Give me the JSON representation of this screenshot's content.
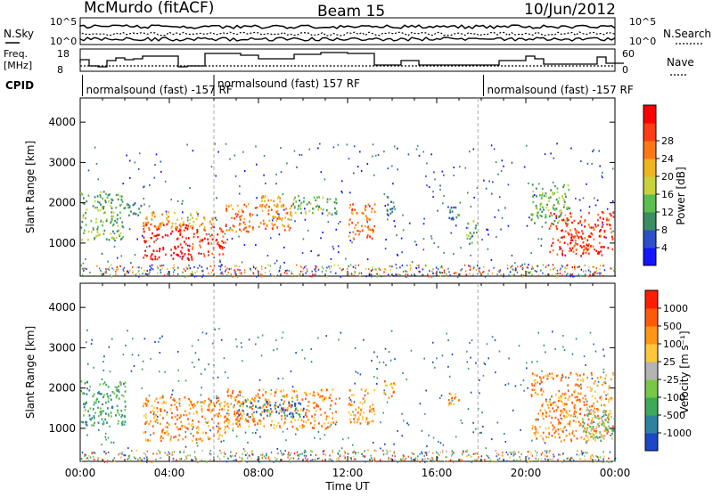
{
  "header": {
    "station": "McMurdo (fitACF)",
    "beam": "Beam 15",
    "date": "10/Jun/2012"
  },
  "top_panels": {
    "nsky_label": "N.Sky",
    "nsearch_label": "N.Search",
    "noise_ticks_left": [
      "10^5",
      "10^0"
    ],
    "noise_ticks_right": [
      "10^5",
      "10^0"
    ],
    "freq_label_1": "Freq.",
    "freq_label_2": "[MHz]",
    "freq_ticks": [
      "18",
      "8"
    ],
    "nave_label": "Nave",
    "nave_ticks": [
      "60",
      "0"
    ],
    "cpid_label": "CPID",
    "cpid_modes": [
      {
        "text": "normalsound (fast) -157 RF",
        "start_hour": 0.1
      },
      {
        "text": "normalsound (fast) 157 RF",
        "start_hour": 6.0
      },
      {
        "text": "normalsound (fast) -157 RF",
        "start_hour": 18.1
      }
    ]
  },
  "chart_data": [
    {
      "type": "heatmap",
      "name": "power",
      "ylabel": "Slant Range [km]",
      "xlabel": "",
      "ylim": [
        180,
        4600
      ],
      "yticks": [
        1000,
        2000,
        3000,
        4000
      ],
      "xlim": [
        0,
        24
      ],
      "colorbar": {
        "label": "Power [dB]",
        "ticks": [
          "4",
          "8",
          "12",
          "16",
          "20",
          "24",
          "28"
        ],
        "colors": [
          "#1414ff",
          "#2d50c8",
          "#3c8c64",
          "#5abe50",
          "#c8d23c",
          "#f0b41e",
          "#ff7814",
          "#ff3c14",
          "#ff0000"
        ]
      },
      "echo_regions": [
        {
          "t0": 0.0,
          "t1": 1.9,
          "r0": 1100,
          "r1": 2300,
          "level": 3
        },
        {
          "t0": 1.9,
          "t1": 2.7,
          "r0": 1700,
          "r1": 2100,
          "level": 2
        },
        {
          "t0": 2.8,
          "t1": 5.0,
          "r0": 600,
          "r1": 1500,
          "level": 8
        },
        {
          "t0": 2.8,
          "t1": 6.0,
          "r0": 1400,
          "r1": 1800,
          "level": 5
        },
        {
          "t0": 5.0,
          "t1": 6.5,
          "r0": 700,
          "r1": 1400,
          "level": 7
        },
        {
          "t0": 6.5,
          "t1": 9.5,
          "r0": 1300,
          "r1": 2000,
          "level": 6
        },
        {
          "t0": 8.0,
          "t1": 9.0,
          "r0": 1800,
          "r1": 2200,
          "level": 5
        },
        {
          "t0": 9.5,
          "t1": 11.5,
          "r0": 1700,
          "r1": 2200,
          "level": 3
        },
        {
          "t0": 12.0,
          "t1": 13.2,
          "r0": 1100,
          "r1": 2000,
          "level": 6
        },
        {
          "t0": 13.6,
          "t1": 14.1,
          "r0": 1700,
          "r1": 2200,
          "level": 2
        },
        {
          "t0": 16.5,
          "t1": 17.0,
          "r0": 1600,
          "r1": 2100,
          "level": 2
        },
        {
          "t0": 17.3,
          "t1": 17.8,
          "r0": 1000,
          "r1": 1600,
          "level": 3
        },
        {
          "t0": 20.2,
          "t1": 22.0,
          "r0": 1500,
          "r1": 2500,
          "level": 3
        },
        {
          "t0": 21.0,
          "t1": 23.9,
          "r0": 700,
          "r1": 1800,
          "level": 7
        }
      ]
    },
    {
      "type": "heatmap",
      "name": "velocity",
      "ylabel": "Slant Range [km]",
      "xlabel": "Time UT",
      "ylim": [
        180,
        4600
      ],
      "yticks": [
        1000,
        2000,
        3000,
        4000
      ],
      "xlim": [
        0,
        24
      ],
      "xticks": [
        "00:00",
        "04:00",
        "08:00",
        "12:00",
        "16:00",
        "20:00",
        "00:00"
      ],
      "colorbar": {
        "label": "Velocity [m s⁻¹]",
        "ticks": [
          "1000",
          "500",
          "100",
          "25",
          "-25",
          "-100",
          "-500",
          "-1000"
        ],
        "colors": [
          "#1e46c8",
          "#2d82a0",
          "#3caa5a",
          "#78c846",
          "#b4b4b4",
          "#ffc83c",
          "#ff9614",
          "#ff5a0a",
          "#ff1e00"
        ]
      },
      "echo_regions": [
        {
          "t0": 0.0,
          "t1": 2.0,
          "r0": 1100,
          "r1": 2200,
          "level": 2
        },
        {
          "t0": 2.8,
          "t1": 6.5,
          "r0": 700,
          "r1": 1800,
          "level": 6
        },
        {
          "t0": 6.5,
          "t1": 11.5,
          "r0": 1000,
          "r1": 2000,
          "level": 6
        },
        {
          "t0": 7.0,
          "t1": 10.0,
          "r0": 1300,
          "r1": 1700,
          "level": 1
        },
        {
          "t0": 12.0,
          "t1": 13.2,
          "r0": 1100,
          "r1": 2000,
          "level": 6
        },
        {
          "t0": 13.6,
          "t1": 14.1,
          "r0": 1700,
          "r1": 2200,
          "level": 6
        },
        {
          "t0": 16.5,
          "t1": 17.0,
          "r0": 1400,
          "r1": 1900,
          "level": 6
        },
        {
          "t0": 20.2,
          "t1": 23.9,
          "r0": 700,
          "r1": 2400,
          "level": 6
        },
        {
          "t0": 22.5,
          "t1": 23.9,
          "r0": 700,
          "r1": 1500,
          "level": 3
        }
      ]
    }
  ]
}
